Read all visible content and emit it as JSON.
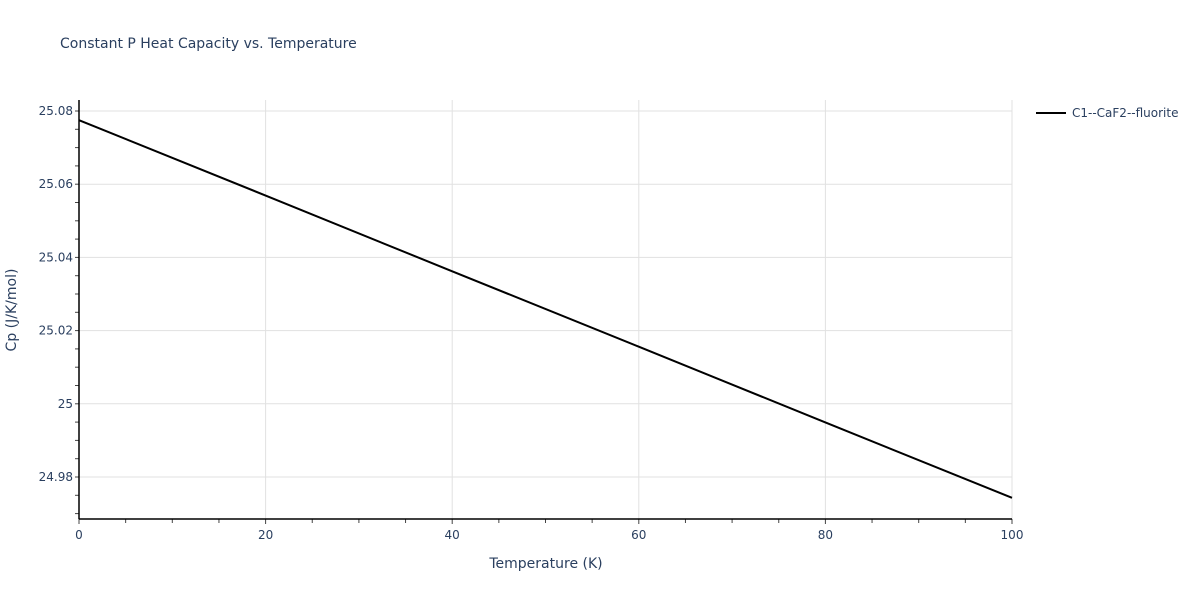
{
  "chart_data": {
    "type": "line",
    "title": "Constant P Heat Capacity vs. Temperature",
    "xlabel": "Temperature (K)",
    "ylabel": "Cp (J/K/mol)",
    "xlim": [
      0,
      100
    ],
    "ylim": [
      24.9685,
      25.0832
    ],
    "x_ticks": [
      "0",
      "20",
      "40",
      "60",
      "80",
      "100"
    ],
    "y_ticks": [
      "24.98",
      "25",
      "25.02",
      "25.04",
      "25.06",
      "25.08"
    ],
    "grid": true,
    "legend_position": "right",
    "series": [
      {
        "name": "C1--CaF2--fluorite",
        "color": "#000000",
        "x": [
          0,
          20,
          40,
          60,
          80,
          100
        ],
        "y": [
          25.0775,
          25.0569,
          25.0362,
          25.0156,
          24.9949,
          24.9743
        ]
      }
    ]
  },
  "legend": {
    "items": [
      {
        "label": "C1--CaF2--fluorite",
        "color": "#000000"
      }
    ]
  }
}
